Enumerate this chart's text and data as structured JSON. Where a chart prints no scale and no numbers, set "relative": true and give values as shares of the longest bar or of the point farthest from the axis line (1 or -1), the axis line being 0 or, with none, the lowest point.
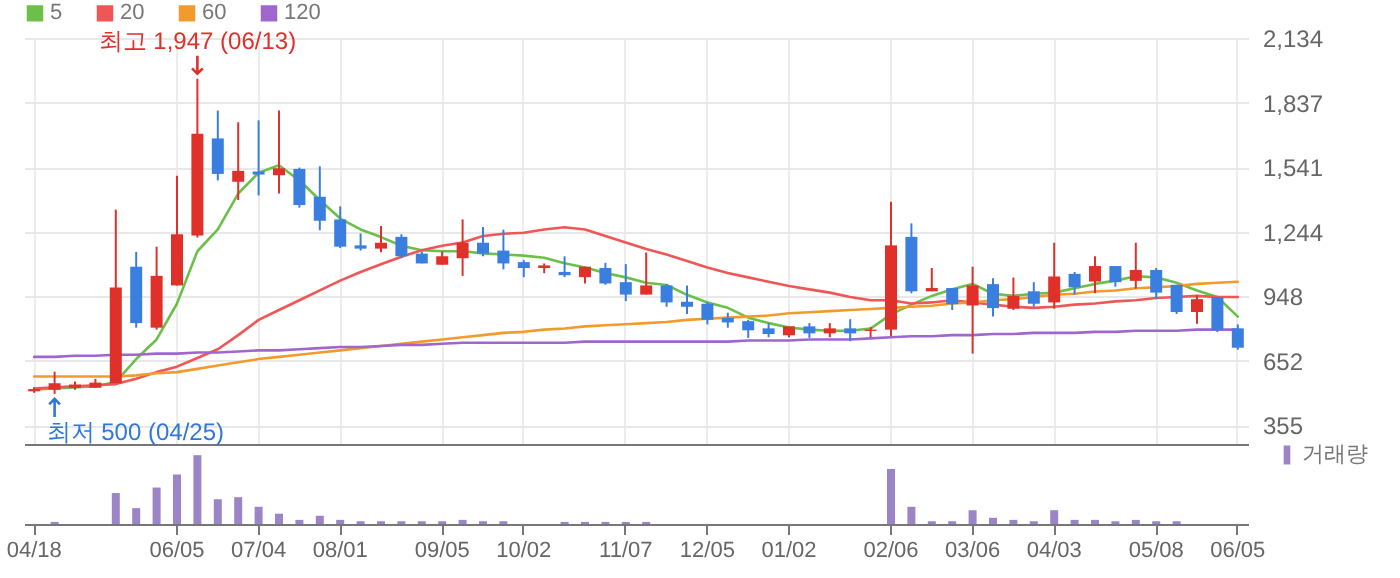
{
  "chart_data": [
    {
      "type": "candlestick",
      "annotations": [
        "최고 1,947 (06/13)",
        "최저 500 (04/25)"
      ],
      "categories": [
        null,
        null,
        null,
        null,
        null,
        null,
        null,
        null,
        null,
        null,
        null,
        null,
        null,
        null,
        null,
        null,
        null,
        null,
        null,
        null,
        null,
        null,
        null,
        null,
        null,
        null,
        null,
        null,
        null,
        null,
        null,
        null,
        null,
        null,
        null,
        null,
        null,
        null,
        null,
        null,
        null,
        null,
        null,
        null,
        null,
        null,
        null,
        null,
        null,
        null,
        null,
        null,
        null,
        null,
        null,
        null,
        null,
        null,
        null,
        null
      ],
      "ohlc": [
        [
          512,
          530,
          505,
          522
        ],
        [
          519,
          602,
          500,
          549
        ],
        [
          528,
          557,
          519,
          543
        ],
        [
          528,
          569,
          528,
          552
        ],
        [
          549,
          1346,
          549,
          989
        ],
        [
          1084,
          1152,
          804,
          825
        ],
        [
          804,
          1176,
          795,
          1042
        ],
        [
          998,
          1501,
          998,
          1233
        ],
        [
          1227,
          1947,
          1218,
          1694
        ],
        [
          1673,
          1801,
          1480,
          1510
        ],
        [
          1474,
          1747,
          1390,
          1524
        ],
        [
          1521,
          1756,
          1411,
          1507
        ],
        [
          1504,
          1801,
          1420,
          1536
        ],
        [
          1533,
          1539,
          1355,
          1367
        ],
        [
          1405,
          1545,
          1251,
          1295
        ],
        [
          1301,
          1361,
          1170,
          1176
        ],
        [
          1182,
          1236,
          1158,
          1167
        ],
        [
          1167,
          1271,
          1150,
          1194
        ],
        [
          1221,
          1233,
          1123,
          1132
        ],
        [
          1144,
          1153,
          1099,
          1099
        ],
        [
          1093,
          1153,
          1093,
          1132
        ],
        [
          1123,
          1301,
          1042,
          1194
        ],
        [
          1194,
          1266,
          1132,
          1144
        ],
        [
          1158,
          1254,
          1072,
          1099
        ],
        [
          1105,
          1114,
          1036,
          1078
        ],
        [
          1078,
          1099,
          1054,
          1090
        ],
        [
          1060,
          1132,
          1036,
          1045
        ],
        [
          1036,
          1084,
          1007,
          1084
        ],
        [
          1078,
          1102,
          1001,
          1007
        ],
        [
          1013,
          1096,
          926,
          956
        ],
        [
          956,
          1149,
          956,
          998
        ],
        [
          998,
          1004,
          900,
          920
        ],
        [
          923,
          998,
          867,
          900
        ],
        [
          914,
          923,
          819,
          840
        ],
        [
          849,
          873,
          804,
          828
        ],
        [
          834,
          840,
          757,
          792
        ],
        [
          801,
          825,
          760,
          775
        ],
        [
          769,
          810,
          760,
          810
        ],
        [
          810,
          825,
          757,
          778
        ],
        [
          778,
          825,
          760,
          801
        ],
        [
          801,
          843,
          742,
          778
        ],
        [
          789,
          807,
          760,
          795
        ],
        [
          795,
          1382,
          766,
          1182
        ],
        [
          1221,
          1283,
          962,
          971
        ],
        [
          971,
          1078,
          971,
          986
        ],
        [
          986,
          986,
          885,
          912
        ],
        [
          906,
          1084,
          685,
          998
        ],
        [
          1004,
          1031,
          855,
          894
        ],
        [
          891,
          1034,
          885,
          950
        ],
        [
          971,
          1013,
          900,
          914
        ],
        [
          920,
          1194,
          891,
          1039
        ],
        [
          1051,
          1060,
          956,
          989
        ],
        [
          1016,
          1132,
          962,
          1087
        ],
        [
          1087,
          1087,
          992,
          1013
        ],
        [
          1019,
          1194,
          983,
          1069
        ],
        [
          1069,
          1078,
          935,
          965
        ],
        [
          1001,
          1001,
          867,
          876
        ],
        [
          876,
          953,
          822,
          935
        ],
        [
          944,
          944,
          784,
          793
        ],
        [
          801,
          819,
          703,
          712
        ]
      ],
      "colors": [
        "#e0302a",
        "#e0302a",
        "#e0302a",
        "#e0302a",
        "#e0302a",
        "#3a7fe0",
        "#e0302a",
        "#e0302a",
        "#e0302a",
        "#3a7fe0",
        "#e0302a",
        "#3a7fe0",
        "#e0302a",
        "#3a7fe0",
        "#3a7fe0",
        "#3a7fe0",
        "#3a7fe0",
        "#e0302a",
        "#3a7fe0",
        "#3a7fe0",
        "#e0302a",
        "#e0302a",
        "#3a7fe0",
        "#3a7fe0",
        "#3a7fe0",
        "#e0302a",
        "#3a7fe0",
        "#e0302a",
        "#3a7fe0",
        "#3a7fe0",
        "#e0302a",
        "#3a7fe0",
        "#3a7fe0",
        "#3a7fe0",
        "#3a7fe0",
        "#3a7fe0",
        "#3a7fe0",
        "#e0302a",
        "#3a7fe0",
        "#e0302a",
        "#3a7fe0",
        "#e0302a",
        "#e0302a",
        "#3a7fe0",
        "#e0302a",
        "#3a7fe0",
        "#e0302a",
        "#3a7fe0",
        "#e0302a",
        "#3a7fe0",
        "#e0302a",
        "#3a7fe0",
        "#e0302a",
        "#3a7fe0",
        "#e0302a",
        "#3a7fe0",
        "#3a7fe0",
        "#e0302a",
        "#3a7fe0",
        "#3a7fe0"
      ],
      "series": [
        {
          "type": "line",
          "name": "5",
          "color": "#6cc04a",
          "values": [
            520,
            525,
            530,
            535,
            555,
            660,
            750,
            915,
            1155,
            1255,
            1420,
            1515,
            1550,
            1480,
            1390,
            1305,
            1255,
            1220,
            1180,
            1160,
            1155,
            1155,
            1145,
            1140,
            1135,
            1125,
            1100,
            1080,
            1055,
            1035,
            1010,
            1000,
            955,
            920,
            895,
            850,
            825,
            805,
            795,
            790,
            790,
            800,
            865,
            910,
            950,
            980,
            1005,
            960,
            950,
            960,
            965,
            985,
            1005,
            1020,
            1040,
            1035,
            1010,
            975,
            945,
            855
          ]
        },
        {
          "type": "line",
          "name": "20",
          "color": "#f05656",
          "values": [
            525,
            530,
            535,
            540,
            545,
            570,
            600,
            625,
            665,
            705,
            770,
            840,
            885,
            930,
            975,
            1020,
            1060,
            1095,
            1130,
            1160,
            1180,
            1195,
            1225,
            1235,
            1240,
            1255,
            1265,
            1255,
            1225,
            1195,
            1165,
            1140,
            1110,
            1080,
            1055,
            1035,
            1015,
            995,
            980,
            965,
            945,
            930,
            930,
            915,
            920,
            930,
            920,
            910,
            900,
            895,
            900,
            910,
            915,
            925,
            930,
            940,
            945,
            950,
            945,
            945
          ]
        },
        {
          "type": "line",
          "name": "60",
          "color": "#f39a2c",
          "values": [
            580,
            580,
            580,
            580,
            580,
            585,
            595,
            600,
            615,
            630,
            645,
            660,
            670,
            680,
            690,
            700,
            710,
            720,
            730,
            740,
            750,
            760,
            770,
            780,
            785,
            795,
            800,
            810,
            815,
            820,
            825,
            830,
            840,
            845,
            850,
            855,
            860,
            870,
            875,
            880,
            885,
            890,
            895,
            900,
            905,
            915,
            920,
            930,
            935,
            945,
            955,
            960,
            970,
            975,
            985,
            990,
            995,
            1005,
            1010,
            1015
          ]
        },
        {
          "type": "line",
          "name": "120",
          "color": "#a066d0",
          "values": [
            670,
            670,
            675,
            675,
            680,
            680,
            685,
            685,
            690,
            690,
            695,
            700,
            700,
            705,
            710,
            715,
            715,
            720,
            725,
            725,
            730,
            735,
            735,
            735,
            735,
            735,
            735,
            740,
            740,
            740,
            740,
            740,
            740,
            740,
            740,
            745,
            745,
            745,
            750,
            750,
            750,
            755,
            760,
            765,
            765,
            770,
            770,
            775,
            775,
            780,
            780,
            780,
            785,
            785,
            790,
            790,
            790,
            795,
            795,
            795
          ]
        }
      ],
      "ylim": [
        270,
        2134
      ],
      "yticks": [
        {
          "value": 355,
          "label": "355"
        },
        {
          "value": 652,
          "label": "652"
        },
        {
          "value": 948,
          "label": "948"
        },
        {
          "value": 1244,
          "label": "1,244"
        },
        {
          "value": 1541,
          "label": "1,541"
        },
        {
          "value": 1837,
          "label": "1,837"
        },
        {
          "value": 2134,
          "label": "2,134"
        }
      ],
      "grid": true,
      "legend": "top",
      "tick_labels": "y"
    },
    {
      "type": "bar",
      "relative": true,
      "categories": [
        "04/18",
        null,
        null,
        null,
        null,
        null,
        null,
        "06/05",
        null,
        null,
        null,
        "07/04",
        null,
        null,
        null,
        "08/01",
        null,
        null,
        null,
        null,
        "09/05",
        null,
        null,
        null,
        "10/02",
        null,
        null,
        null,
        null,
        "11/07",
        null,
        null,
        null,
        "12/05",
        null,
        null,
        null,
        "01/02",
        null,
        null,
        null,
        null,
        "02/06",
        null,
        null,
        null,
        "03/06",
        null,
        null,
        null,
        "04/03",
        null,
        null,
        null,
        null,
        "05/08",
        null,
        null,
        null,
        "06/05"
      ],
      "series": [
        {
          "name": "거래량",
          "color": "#9b85c6",
          "values": [
            0,
            0.03,
            0,
            0,
            0.45,
            0.23,
            0.53,
            0.72,
            1,
            0.36,
            0.39,
            0.25,
            0.15,
            0.06,
            0.12,
            0.06,
            0.04,
            0.04,
            0.04,
            0.04,
            0.04,
            0.06,
            0.04,
            0.04,
            0,
            0,
            0.03,
            0.03,
            0.03,
            0.03,
            0.03,
            0,
            0,
            0,
            0,
            0,
            0,
            0,
            0,
            0,
            0,
            0,
            0.8,
            0.25,
            0.04,
            0.04,
            0.2,
            0.09,
            0.06,
            0.04,
            0.2,
            0.06,
            0.06,
            0.04,
            0.06,
            0.04,
            0.04,
            0,
            0,
            0
          ]
        }
      ],
      "legend": "top right",
      "tick_labels": "x"
    }
  ]
}
